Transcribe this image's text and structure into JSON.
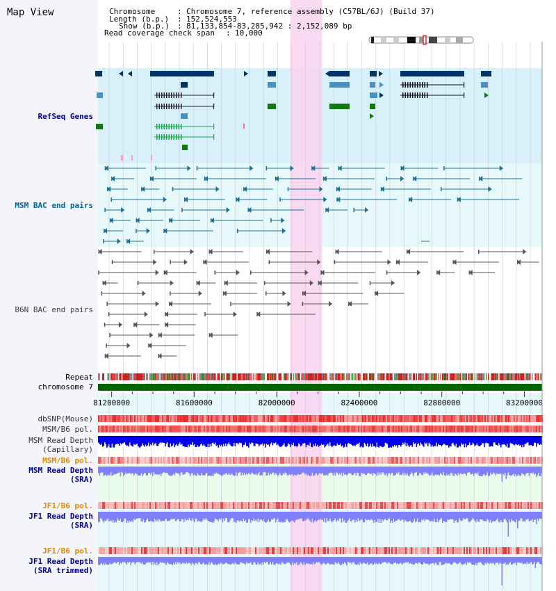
{
  "title": "Map View",
  "header": {
    "chromosome_label": "Chromosome",
    "chromosome_value": "Chromosome 7, reference assembly (C57BL/6J) (Build 37)",
    "length_label": "Length (b.p.)",
    "length_value": "152,524,553",
    "show_label": "Show (b.p.)",
    "show_value": "81,133,854-83,285,942 : 2,152,089 bp",
    "coverage_label": "Read coverage check span",
    "coverage_value": "10,000"
  },
  "tracks": {
    "refseq": {
      "label": "RefSeq Genes",
      "color": "#000099"
    },
    "msm_bac": {
      "label": "MSM BAC end pairs",
      "color": "#006699"
    },
    "b6n_bac": {
      "label": "B6N BAC end pairs",
      "color": "#444444"
    },
    "repeat": {
      "label": "Repeat"
    },
    "chromosome": {
      "label": "chromosome 7"
    },
    "dbsnp": {
      "label": "dbSNP(Mouse)"
    },
    "msm_b6_pol_1": {
      "label": "MSM/B6 pol."
    },
    "msm_depth_cap": {
      "label": "MSM Read Depth",
      "sub": "(Capillary)"
    },
    "msm_b6_pol_2": {
      "label": "MSM/B6 pol.",
      "color": "#e08a00"
    },
    "msm_depth_sra": {
      "label": "MSM Read Depth",
      "sub": "(SRA)",
      "color": "#000099"
    },
    "jf1_b6_pol_1": {
      "label": "JF1/B6 pol.",
      "color": "#e08a00"
    },
    "jf1_depth_sra": {
      "label": "JF1 Read Depth",
      "sub": "(SRA)",
      "color": "#000099"
    },
    "jf1_b6_pol_2": {
      "label": "JF1/B6 pol.",
      "color": "#e08a00"
    },
    "jf1_depth_trim": {
      "label": "JF1 Read Depth",
      "sub": "(SRA trimmed)",
      "color": "#000099"
    }
  },
  "chart_data": {
    "type": "table",
    "x_ticks": [
      81200000,
      81600000,
      82000000,
      82400000,
      82800000,
      83200000
    ],
    "x_tick_labels": [
      "81200000",
      "81600000",
      "82000000",
      "82400000",
      "82800000",
      "83200000"
    ],
    "xlim": [
      81133854,
      83285942
    ],
    "highlight_region": [
      82065000,
      82220000
    ],
    "colors": {
      "highlight": "#f9d3f0",
      "refseq_bg": "#d7f0fa",
      "msm_bg": "#e6f8fa",
      "depth_bg": "#e9fbe9",
      "chromosome": "#006600",
      "depth_bar": "#8080ff",
      "depth_cap": "#0000ee",
      "pol": "#f08080"
    }
  }
}
